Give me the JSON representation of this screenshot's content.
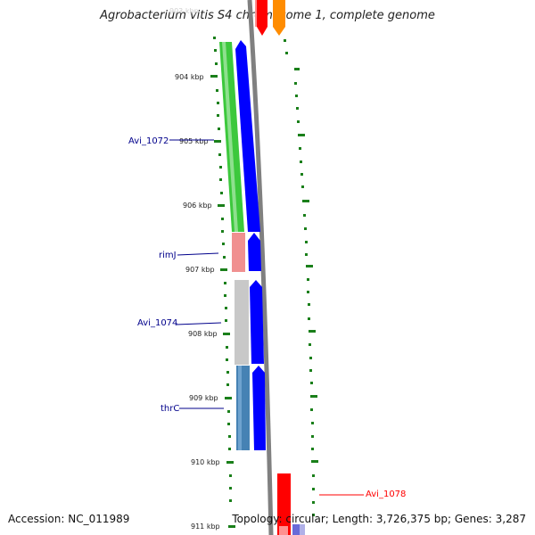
{
  "header": {
    "title": "Agrobacterium vitis S4 chromosome 1, complete genome",
    "faded_tick": "903 kbp"
  },
  "footer": {
    "accession": "Accession: NC_011989",
    "topology": "Topology: circular; Length: 3,726,375 bp; Genes: 3,287"
  },
  "ruler": {
    "ticks": [
      "904 kbp",
      "905 kbp",
      "906 kbp",
      "907 kbp",
      "908 kbp",
      "909 kbp",
      "910 kbp",
      "911 kbp"
    ]
  },
  "genes": {
    "avi1072": {
      "label": "Avi_1072",
      "color": "#3cc83c"
    },
    "rimJ": {
      "label": "rimJ",
      "color": "#f09090"
    },
    "avi1074": {
      "label": "Avi_1074",
      "color": "#c8c8c8"
    },
    "thrC": {
      "label": "thrC",
      "color": "#4682b4"
    },
    "avi1078": {
      "label": "Avi_1078",
      "color": "#ff0000"
    }
  },
  "colors": {
    "cds": "#0000ff",
    "backbone": "#808080",
    "tick": "#1a7f1a",
    "label_blue": "#00008b",
    "label_red": "#ff0000",
    "reverse_feature": "#ff0000",
    "orange_feature": "#ff8c00"
  }
}
